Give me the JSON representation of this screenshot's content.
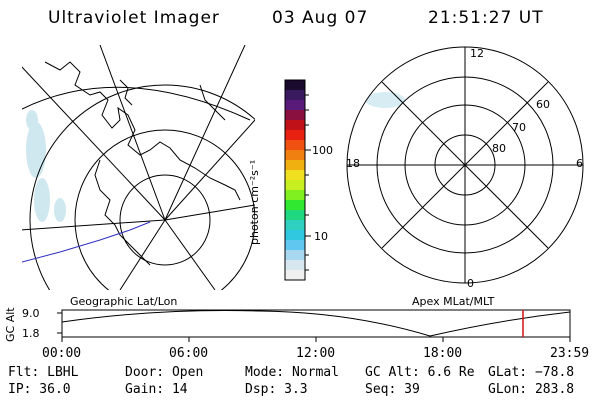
{
  "header": {
    "title": "Ultraviolet Imager",
    "date": "03 Aug 07",
    "time": "21:51:27 UT"
  },
  "colorbar": {
    "label": "photon cm⁻²s⁻¹",
    "ticks": [
      "100",
      "10"
    ],
    "colors": [
      "#1a0a2e",
      "#3a1a5e",
      "#5a1a7a",
      "#8a1040",
      "#c01018",
      "#e82010",
      "#f05010",
      "#f08010",
      "#f0b010",
      "#f0e020",
      "#c8f020",
      "#80f020",
      "#30e830",
      "#20d880",
      "#30d0c0",
      "#30c8e0",
      "#60c8f0",
      "#a8d8f0",
      "#d8e8f0",
      "#f0f0f0"
    ]
  },
  "left_map": {
    "caption": "Geographic Lat/Lon"
  },
  "right_map": {
    "caption": "Apex MLat/MLT",
    "mlt_labels": [
      "12",
      "18",
      "6",
      "0"
    ],
    "mlat_labels": [
      "60",
      "70",
      "80"
    ]
  },
  "altitude_plot": {
    "ylabel": "GC Alt",
    "yticks": [
      "9.0",
      "1.8"
    ],
    "xticks": [
      "00:00",
      "06:00",
      "12:00",
      "18:00",
      "23:59"
    ]
  },
  "status": {
    "row1": [
      "Flt: LBHL",
      "Door: Open",
      "Mode: Normal",
      "GC Alt: 6.6 Re",
      "GLat: −78.8"
    ],
    "row2": [
      "IP: 36.0",
      "Gain: 14",
      "Dsp:    3.3",
      "Seq: 39",
      "GLon: 283.8"
    ]
  }
}
